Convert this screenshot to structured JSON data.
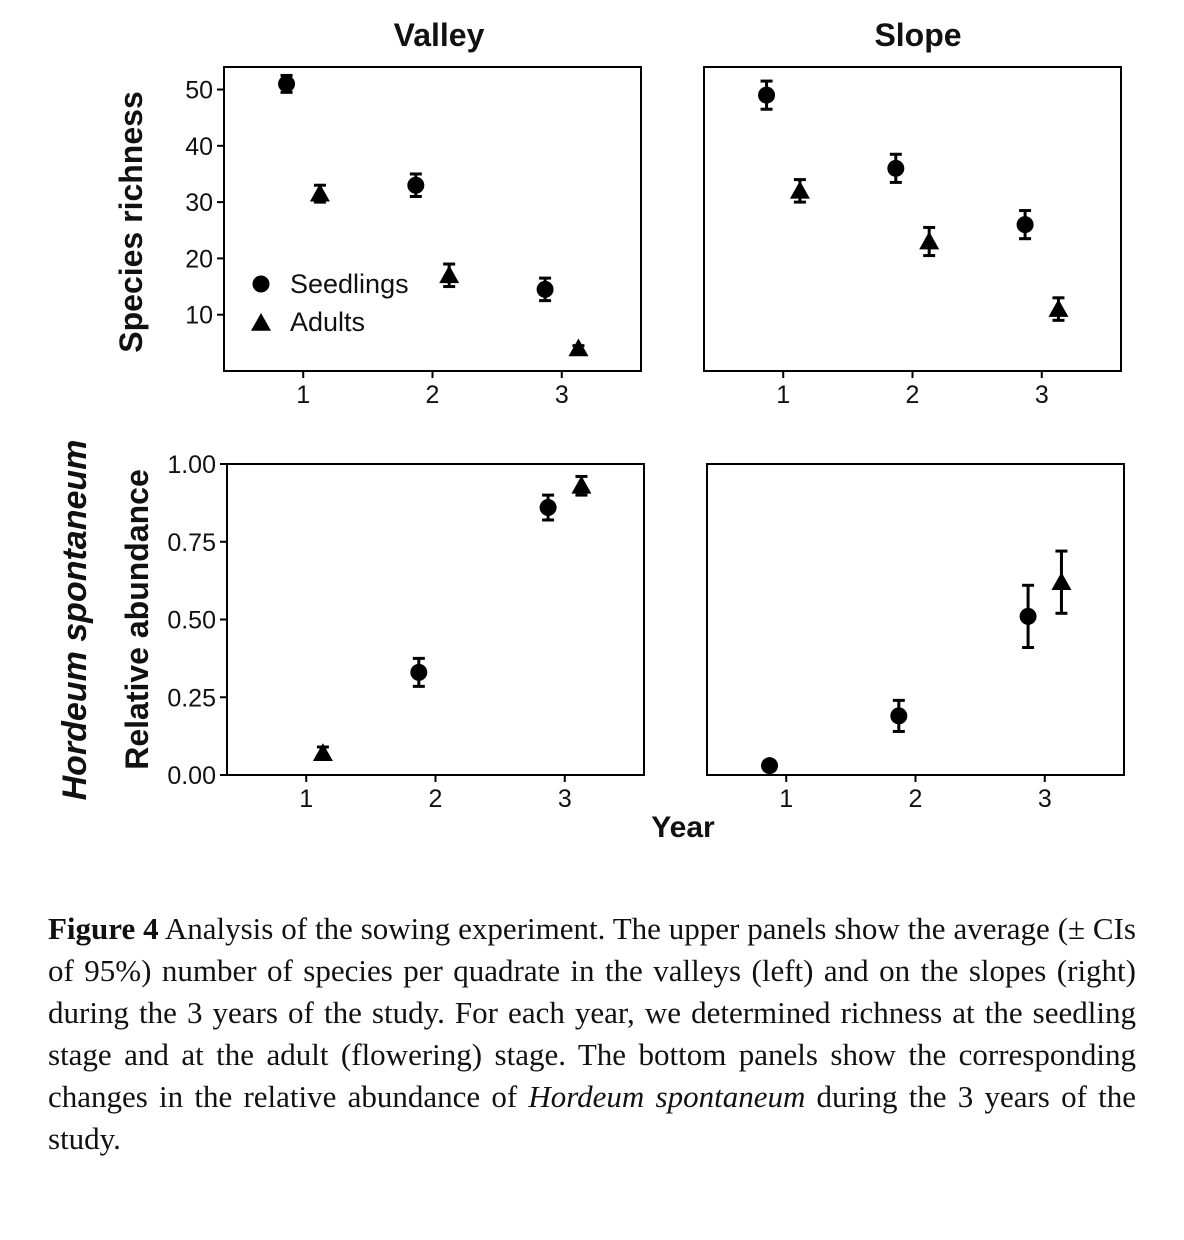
{
  "figure": {
    "column_titles": [
      "Valley",
      "Slope"
    ],
    "left_labels": {
      "species": "Hordeum spontaneum"
    },
    "xaxis_label": "Year"
  },
  "caption": {
    "label": "Figure 4",
    "text_before": " Analysis of the sowing experiment. The upper panels show the average (± CIs of 95%) number of species per quadrate in the valleys (left) and on the slopes (right) during the 3 years of the study. For each year, we determined richness at the seedling stage and at the adult (flowering) stage. The bottom panels show the corresponding changes in the relative abundance of ",
    "italic_species": "Hordeum spontaneum",
    "text_after": " during the 3 years of the study."
  },
  "chart_data": [
    {
      "type": "scatter",
      "panel": "Valley",
      "title": "Valley",
      "ylabel": "Species richness",
      "xlabel": "",
      "x": [
        1,
        2,
        3
      ],
      "xticks": [
        "1",
        "2",
        "3"
      ],
      "yticks": [
        10,
        20,
        30,
        40,
        50
      ],
      "ylim": [
        0,
        54
      ],
      "legend": "inside lower-left",
      "grid": false,
      "series": [
        {
          "name": "Seedlings",
          "marker": "circle",
          "values": [
            51,
            33,
            14.5
          ],
          "ci": [
            1.5,
            2,
            2
          ]
        },
        {
          "name": "Adults",
          "marker": "triangle",
          "values": [
            31.5,
            17,
            4
          ],
          "ci": [
            1.5,
            2,
            0.5
          ]
        }
      ]
    },
    {
      "type": "scatter",
      "panel": "Slope",
      "title": "Slope",
      "ylabel": "",
      "xlabel": "",
      "x": [
        1,
        2,
        3
      ],
      "xticks": [
        "1",
        "2",
        "3"
      ],
      "yticks": [],
      "ylim": [
        0,
        54
      ],
      "grid": false,
      "series": [
        {
          "name": "Seedlings",
          "marker": "circle",
          "values": [
            49,
            36,
            26
          ],
          "ci": [
            2.5,
            2.5,
            2.5
          ]
        },
        {
          "name": "Adults",
          "marker": "triangle",
          "values": [
            32,
            23,
            11
          ],
          "ci": [
            2,
            2.5,
            2
          ]
        }
      ]
    },
    {
      "type": "scatter",
      "panel": "Valley",
      "title": "",
      "ylabel": "Relative abundance",
      "xlabel": "",
      "x": [
        1,
        2,
        3
      ],
      "xticks": [
        "1",
        "2",
        "3"
      ],
      "yticks": [
        "0.00",
        "0.25",
        "0.50",
        "0.75",
        "1.00"
      ],
      "ylim": [
        0,
        1.0
      ],
      "grid": false,
      "series": [
        {
          "name": "Seedlings",
          "marker": "circle",
          "values": [
            null,
            0.33,
            0.86
          ],
          "ci": [
            null,
            0.045,
            0.04
          ]
        },
        {
          "name": "Adults",
          "marker": "triangle",
          "values": [
            0.07,
            null,
            0.93
          ],
          "ci": [
            0.02,
            null,
            0.03
          ]
        }
      ]
    },
    {
      "type": "scatter",
      "panel": "Slope",
      "title": "",
      "ylabel": "",
      "xlabel": "Year",
      "x": [
        1,
        2,
        3
      ],
      "xticks": [
        "1",
        "2",
        "3"
      ],
      "yticks": [],
      "ylim": [
        0,
        1.0
      ],
      "grid": false,
      "series": [
        {
          "name": "Seedlings",
          "marker": "circle",
          "values": [
            0.03,
            0.19,
            0.51
          ],
          "ci": [
            0.015,
            0.05,
            0.1
          ]
        },
        {
          "name": "Adults",
          "marker": "triangle",
          "values": [
            null,
            null,
            0.62
          ],
          "ci": [
            null,
            null,
            0.1
          ]
        }
      ]
    }
  ]
}
